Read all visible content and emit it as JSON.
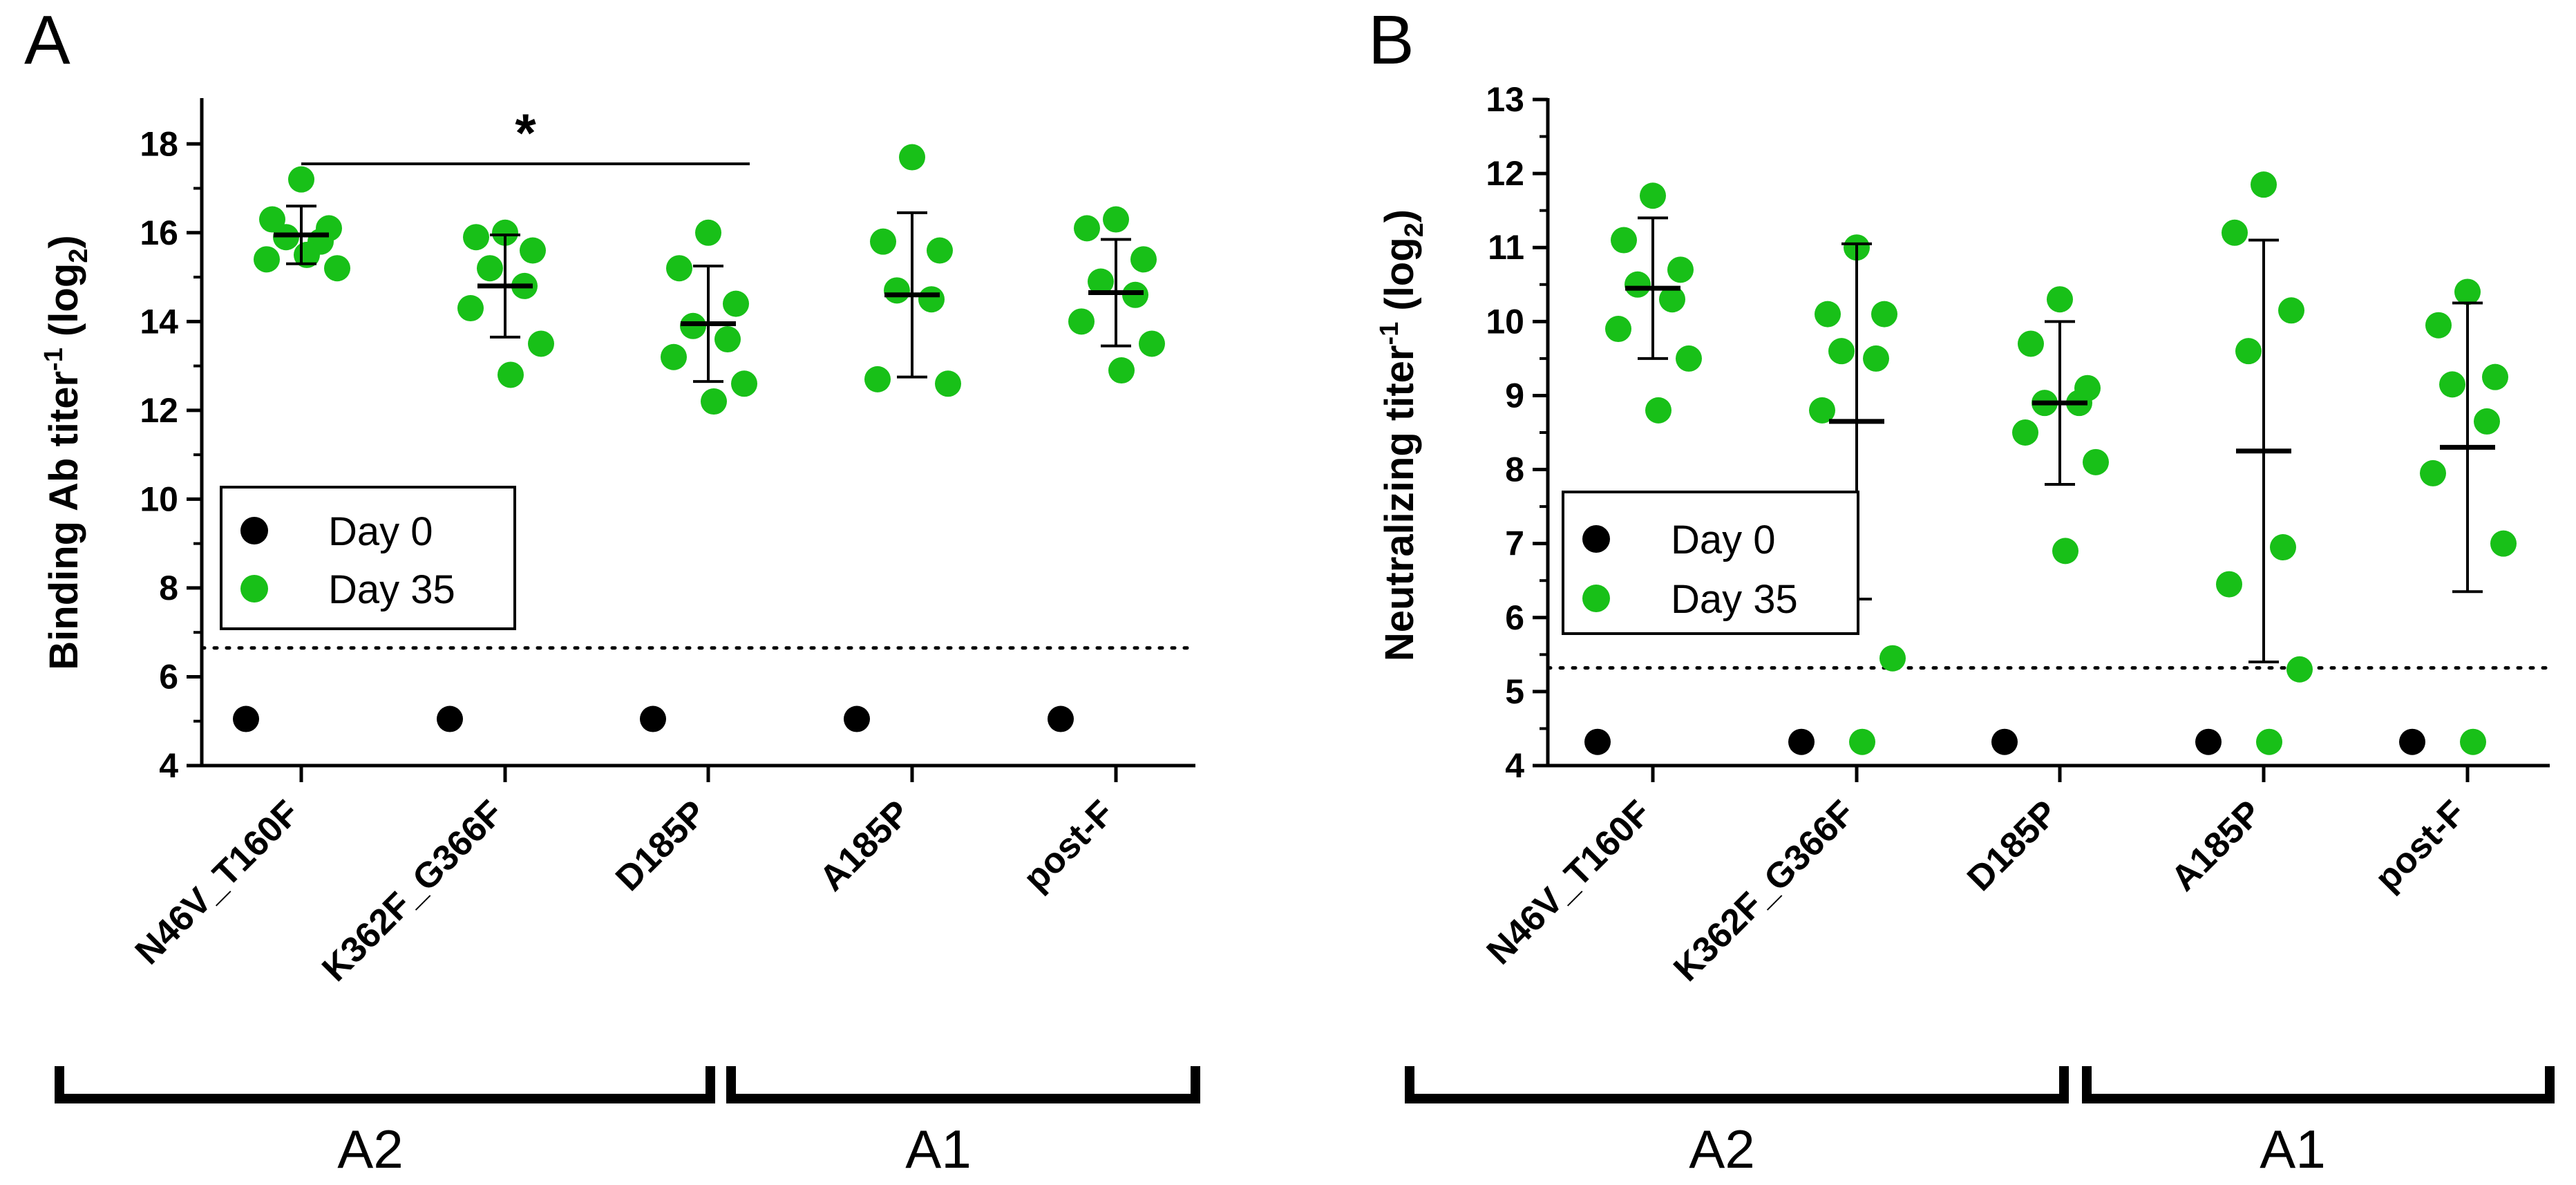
{
  "colors": {
    "day0": "#000000",
    "day35": "#18c018",
    "axis": "#000000"
  },
  "legend": {
    "day0": "Day 0",
    "day35": "Day 35"
  },
  "groups": [
    {
      "label": "A2",
      "members": [
        "N46V_T160F",
        "K362F_G366F",
        "D185P"
      ]
    },
    {
      "label": "A1",
      "members": [
        "A185P",
        "post-F"
      ]
    }
  ],
  "chart_data": [
    {
      "panel": "A",
      "type": "scatter",
      "ylabel_main": "Binding Ab titer",
      "ylabel_sup": "-1",
      "ylabel_paren_open": " (log",
      "ylabel_sub": "2",
      "ylabel_paren_close": ")",
      "ylim": [
        4,
        19
      ],
      "yticks": [
        4,
        6,
        8,
        10,
        12,
        14,
        16,
        18
      ],
      "categories": [
        "N46V_T160F",
        "K362F_G366F",
        "D185P",
        "A185P",
        "post-F"
      ],
      "limit_of_detection": 6.65,
      "day0": [
        5.05,
        5.05,
        5.05,
        5.05,
        5.05
      ],
      "day35_points": [
        [
          17.2,
          16.3,
          16.1,
          15.9,
          15.8,
          15.4,
          15.2,
          15.5
        ],
        [
          16.0,
          15.9,
          15.6,
          15.2,
          14.8,
          14.3,
          13.5,
          12.8
        ],
        [
          16.0,
          15.2,
          14.4,
          13.9,
          13.6,
          13.2,
          12.6,
          12.2
        ],
        [
          17.7,
          15.8,
          15.6,
          14.7,
          14.5,
          12.7,
          12.6
        ],
        [
          16.3,
          16.1,
          15.4,
          14.9,
          14.6,
          14.0,
          13.5,
          12.9
        ]
      ],
      "mean": [
        15.95,
        14.8,
        13.95,
        14.6,
        14.65
      ],
      "sd": [
        0.65,
        1.15,
        1.3,
        1.85,
        1.2
      ],
      "significance": {
        "from": 0,
        "to": 2,
        "y": 17.55,
        "label": "*"
      }
    },
    {
      "panel": "B",
      "type": "scatter",
      "ylabel_main": "Neutralizing titer",
      "ylabel_sup": "-1",
      "ylabel_paren_open": " (log",
      "ylabel_sub": "2",
      "ylabel_paren_close": ")",
      "ylim": [
        4,
        13
      ],
      "yticks": [
        4,
        5,
        6,
        7,
        8,
        9,
        10,
        11,
        12,
        13
      ],
      "categories": [
        "N46V_T160F",
        "K362F_G366F",
        "D185P",
        "A185P",
        "post-F"
      ],
      "limit_of_detection": 5.32,
      "day0": [
        4.32,
        4.32,
        4.32,
        4.32,
        4.32
      ],
      "day35_points": [
        [
          11.7,
          11.1,
          10.7,
          10.5,
          10.3,
          9.9,
          9.5,
          8.8
        ],
        [
          11.0,
          10.1,
          10.1,
          9.6,
          9.5,
          8.8,
          5.45,
          4.32
        ],
        [
          10.3,
          9.7,
          9.1,
          8.9,
          8.9,
          8.5,
          8.1,
          6.9
        ],
        [
          11.85,
          11.2,
          10.15,
          9.6,
          6.95,
          6.45,
          5.3,
          4.32
        ],
        [
          10.4,
          9.95,
          9.25,
          9.15,
          8.65,
          7.95,
          7.0,
          4.32
        ]
      ],
      "mean": [
        10.45,
        8.65,
        8.9,
        8.25,
        8.3
      ],
      "sd": [
        0.95,
        2.4,
        1.1,
        2.85,
        1.95
      ]
    }
  ]
}
